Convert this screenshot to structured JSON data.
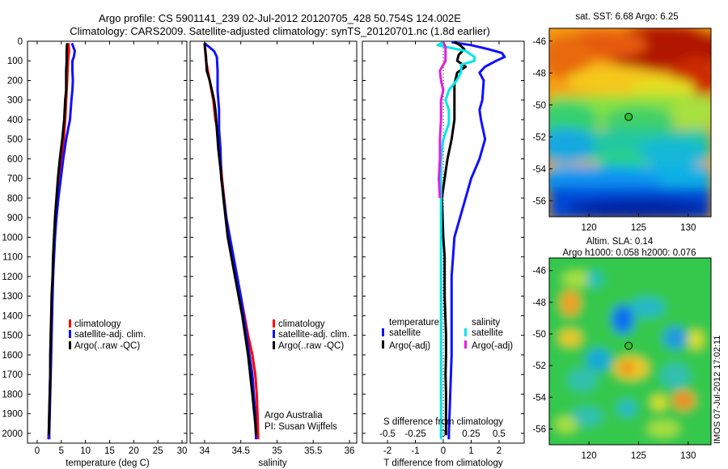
{
  "title": {
    "line1": "Argo profile: CS 5901141_239 02-Jul-2012 20120705_428 50.754S 124.002E",
    "line2": "Climatology: CARS2009. Satellite-adjusted climatology: synTS_20120701.nc (1.8d earlier)"
  },
  "colors": {
    "red": "#ff0000",
    "blue": "#1010ff",
    "black": "#000000",
    "cyan": "#00e8e8",
    "magenta": "#e020e0"
  },
  "chart_data": [
    {
      "type": "line",
      "xlabel": "temperature (deg C)",
      "ylabel": "",
      "xlim": [
        -2,
        31
      ],
      "ylim": [
        2050,
        0
      ],
      "xticks": [
        "0",
        "5",
        "10",
        "15",
        "20",
        "25",
        "30"
      ],
      "yticks": [
        "0",
        "100",
        "200",
        "300",
        "400",
        "500",
        "600",
        "700",
        "800",
        "900",
        "1000",
        "1100",
        "1200",
        "1300",
        "1400",
        "1500",
        "1600",
        "1700",
        "1800",
        "1900",
        "2000"
      ],
      "legend": [
        "climatology",
        "satellite-adj. clim.",
        "Argo(..raw -QC)"
      ],
      "series": [
        {
          "name": "climatology",
          "color": "red",
          "points": [
            [
              6.5,
              10
            ],
            [
              6.6,
              50
            ],
            [
              6.4,
              100
            ],
            [
              6.3,
              150
            ],
            [
              6.2,
              200
            ],
            [
              6.1,
              250
            ],
            [
              6.0,
              300
            ],
            [
              5.8,
              400
            ],
            [
              5.5,
              500
            ],
            [
              5.0,
              600
            ],
            [
              4.5,
              700
            ],
            [
              4.1,
              800
            ],
            [
              3.8,
              900
            ],
            [
              3.6,
              1000
            ],
            [
              3.4,
              1100
            ],
            [
              3.3,
              1200
            ],
            [
              3.1,
              1300
            ],
            [
              3.0,
              1400
            ],
            [
              2.9,
              1500
            ],
            [
              2.8,
              1600
            ],
            [
              2.7,
              1700
            ],
            [
              2.6,
              1800
            ],
            [
              2.5,
              1900
            ],
            [
              2.4,
              2000
            ],
            [
              2.3,
              2030
            ]
          ]
        },
        {
          "name": "satellite-adj. clim.",
          "color": "blue",
          "points": [
            [
              7.2,
              10
            ],
            [
              7.8,
              50
            ],
            [
              7.6,
              80
            ],
            [
              7.3,
              100
            ],
            [
              7.3,
              150
            ],
            [
              7.4,
              200
            ],
            [
              7.3,
              250
            ],
            [
              7.1,
              300
            ],
            [
              6.8,
              400
            ],
            [
              6.4,
              450
            ],
            [
              6.0,
              500
            ],
            [
              5.4,
              600
            ],
            [
              4.9,
              700
            ],
            [
              4.4,
              800
            ],
            [
              4.0,
              900
            ],
            [
              3.7,
              1000
            ],
            [
              3.5,
              1100
            ],
            [
              3.3,
              1200
            ],
            [
              3.2,
              1300
            ],
            [
              3.1,
              1400
            ],
            [
              3.0,
              1500
            ],
            [
              2.9,
              1600
            ],
            [
              2.8,
              1700
            ],
            [
              2.7,
              1800
            ],
            [
              2.6,
              1900
            ],
            [
              2.5,
              2000
            ],
            [
              2.5,
              2030
            ]
          ]
        },
        {
          "name": "Argo(..raw -QC)",
          "color": "black",
          "points": [
            [
              6.2,
              10
            ],
            [
              6.1,
              50
            ],
            [
              6.1,
              100
            ],
            [
              6.0,
              150
            ],
            [
              6.0,
              200
            ],
            [
              6.0,
              250
            ],
            [
              5.8,
              300
            ],
            [
              5.6,
              400
            ],
            [
              5.2,
              500
            ],
            [
              4.7,
              600
            ],
            [
              4.3,
              700
            ],
            [
              4.0,
              800
            ],
            [
              3.7,
              900
            ],
            [
              3.5,
              1000
            ],
            [
              3.3,
              1100
            ],
            [
              3.2,
              1200
            ],
            [
              3.0,
              1300
            ],
            [
              2.9,
              1400
            ],
            [
              2.8,
              1500
            ],
            [
              2.7,
              1600
            ],
            [
              2.7,
              1700
            ],
            [
              2.6,
              1800
            ],
            [
              2.5,
              1900
            ],
            [
              2.4,
              2000
            ],
            [
              2.4,
              2010
            ]
          ]
        }
      ]
    },
    {
      "type": "line",
      "xlabel": "salinity",
      "ylabel": "",
      "xlim": [
        33.8,
        36.1
      ],
      "ylim": [
        2050,
        0
      ],
      "xticks": [
        "34",
        "34.5",
        "35",
        "35.5",
        "36"
      ],
      "legend": [
        "climatology",
        "satellite-adj. clim.",
        "Argo(..raw -QC)"
      ],
      "annotation": [
        "Argo Australia",
        "PI: Susan Wijffels"
      ],
      "series": [
        {
          "name": "climatology",
          "color": "red",
          "points": [
            [
              34.0,
              10
            ],
            [
              34.02,
              100
            ],
            [
              34.07,
              200
            ],
            [
              34.12,
              300
            ],
            [
              34.15,
              400
            ],
            [
              34.18,
              450
            ],
            [
              34.19,
              500
            ],
            [
              34.21,
              550
            ],
            [
              34.24,
              700
            ],
            [
              34.3,
              900
            ],
            [
              34.38,
              1100
            ],
            [
              34.5,
              1300
            ],
            [
              34.6,
              1500
            ],
            [
              34.66,
              1600
            ],
            [
              34.7,
              1700
            ],
            [
              34.72,
              1800
            ],
            [
              34.73,
              1900
            ],
            [
              34.74,
              2030
            ]
          ]
        },
        {
          "name": "satellite-adj. clim.",
          "color": "blue",
          "points": [
            [
              34.0,
              10
            ],
            [
              34.13,
              50
            ],
            [
              34.17,
              80
            ],
            [
              34.18,
              150
            ],
            [
              34.18,
              250
            ],
            [
              34.2,
              350
            ],
            [
              34.2,
              450
            ],
            [
              34.22,
              550
            ],
            [
              34.23,
              700
            ],
            [
              34.3,
              900
            ],
            [
              34.4,
              1100
            ],
            [
              34.5,
              1300
            ],
            [
              34.58,
              1500
            ],
            [
              34.62,
              1600
            ],
            [
              34.66,
              1700
            ],
            [
              34.68,
              1800
            ],
            [
              34.7,
              1900
            ],
            [
              34.71,
              2000
            ],
            [
              34.71,
              2030
            ]
          ]
        },
        {
          "name": "Argo(..raw -QC)",
          "color": "black",
          "points": [
            [
              34.0,
              10
            ],
            [
              34.02,
              80
            ],
            [
              34.03,
              150
            ],
            [
              34.07,
              200
            ],
            [
              34.1,
              250
            ],
            [
              34.13,
              300
            ],
            [
              34.15,
              350
            ],
            [
              34.17,
              450
            ],
            [
              34.19,
              550
            ],
            [
              34.22,
              650
            ],
            [
              34.26,
              800
            ],
            [
              34.32,
              1000
            ],
            [
              34.42,
              1200
            ],
            [
              34.52,
              1400
            ],
            [
              34.6,
              1600
            ],
            [
              34.66,
              1800
            ],
            [
              34.7,
              1950
            ],
            [
              34.71,
              2010
            ]
          ]
        }
      ]
    },
    {
      "type": "line",
      "xlabel": "T difference from climatology",
      "x2label": "S difference from climatology",
      "xlim": [
        -2.9,
        2.9
      ],
      "x2lim": [
        -0.725,
        0.725
      ],
      "ylim": [
        2050,
        0
      ],
      "xticks": [
        "-2",
        "-1",
        "0",
        "1",
        "2"
      ],
      "x2ticks": [
        "-0.5",
        "-0.25",
        "0",
        "0.25",
        "0.5"
      ],
      "legend_groups": [
        {
          "heading": "temperature",
          "items": [
            "satellite",
            "Argo(-adj)"
          ]
        },
        {
          "heading": "salinity",
          "items": [
            "satellite",
            "Argo(-adj)"
          ]
        }
      ],
      "series": [
        {
          "name": "temperature satellite",
          "color": "blue",
          "axis": "T",
          "points": [
            [
              0.3,
              5
            ],
            [
              1.0,
              20
            ],
            [
              1.6,
              40
            ],
            [
              2.1,
              60
            ],
            [
              2.2,
              80
            ],
            [
              1.9,
              100
            ],
            [
              1.5,
              130
            ],
            [
              1.3,
              160
            ],
            [
              1.45,
              200
            ],
            [
              1.4,
              300
            ],
            [
              1.3,
              350
            ],
            [
              1.35,
              400
            ],
            [
              1.5,
              500
            ],
            [
              1.3,
              600
            ],
            [
              1.0,
              700
            ],
            [
              0.8,
              800
            ],
            [
              0.6,
              900
            ],
            [
              0.4,
              1000
            ],
            [
              0.35,
              1100
            ],
            [
              0.3,
              1200
            ],
            [
              0.3,
              1400
            ],
            [
              0.3,
              1600
            ],
            [
              0.25,
              1800
            ],
            [
              0.2,
              2000
            ],
            [
              0.2,
              2030
            ]
          ]
        },
        {
          "name": "temperature Argo(-adj)",
          "color": "black",
          "axis": "T",
          "points": [
            [
              0.4,
              5
            ],
            [
              0.6,
              20
            ],
            [
              0.75,
              40
            ],
            [
              0.55,
              70
            ],
            [
              0.5,
              100
            ],
            [
              0.8,
              130
            ],
            [
              0.5,
              160
            ],
            [
              0.4,
              220
            ],
            [
              0.4,
              300
            ],
            [
              0.4,
              400
            ],
            [
              0.3,
              500
            ],
            [
              0.15,
              600
            ],
            [
              0.05,
              700
            ],
            [
              -0.05,
              800
            ],
            [
              0,
              1000
            ],
            [
              0.05,
              1100
            ],
            [
              0.05,
              1300
            ],
            [
              0.1,
              1500
            ],
            [
              0.1,
              1600
            ],
            [
              0.08,
              1700
            ],
            [
              0.1,
              1800
            ],
            [
              0.1,
              1900
            ],
            [
              0.1,
              2000
            ],
            [
              0.1,
              2010
            ]
          ]
        },
        {
          "name": "salinity satellite",
          "color": "cyan",
          "axis": "S",
          "points": [
            [
              0.0,
              5
            ],
            [
              -0.05,
              20
            ],
            [
              0.2,
              50
            ],
            [
              0.28,
              80
            ],
            [
              0.28,
              100
            ],
            [
              0.16,
              120
            ],
            [
              0.16,
              160
            ],
            [
              0.12,
              200
            ],
            [
              0.05,
              250
            ],
            [
              0.02,
              300
            ],
            [
              0.05,
              350
            ],
            [
              0.05,
              420
            ],
            [
              0.0,
              500
            ],
            [
              -0.02,
              600
            ],
            [
              -0.02,
              800
            ],
            [
              -0.02,
              1000
            ],
            [
              -0.02,
              1200
            ],
            [
              -0.02,
              1400
            ],
            [
              -0.02,
              1600
            ],
            [
              -0.02,
              1800
            ],
            [
              -0.02,
              2000
            ],
            [
              -0.02,
              2030
            ]
          ]
        },
        {
          "name": "salinity Argo(-adj)",
          "color": "magenta",
          "axis": "S",
          "points": [
            [
              0.0,
              5
            ],
            [
              0.02,
              30
            ],
            [
              0.02,
              100
            ],
            [
              -0.03,
              150
            ],
            [
              -0.02,
              200
            ],
            [
              0.0,
              250
            ],
            [
              -0.02,
              300
            ],
            [
              -0.02,
              400
            ],
            [
              -0.03,
              500
            ],
            [
              -0.03,
              600
            ],
            [
              -0.04,
              700
            ],
            [
              -0.03,
              800
            ]
          ]
        }
      ]
    }
  ],
  "maps": {
    "top": {
      "title": "sat. SST: 6.68 Argo: 6.25",
      "xticks": [
        "120",
        "125",
        "130"
      ],
      "yticks": [
        "-46",
        "-48",
        "-50",
        "-52",
        "-54",
        "-56"
      ],
      "marker": {
        "lon": 124.0,
        "lat": -50.75
      }
    },
    "bottom": {
      "title1": "Altim. SLA: 0.14",
      "title2": "Argo h1000: 0.058 h2000: 0.076",
      "xticks": [
        "120",
        "125",
        "130"
      ],
      "yticks": [
        "-46",
        "-48",
        "-50",
        "-52",
        "-54",
        "-56"
      ],
      "marker": {
        "lon": 124.0,
        "lat": -50.75
      }
    }
  },
  "footer_stamp": "IMOS 07-Jul-2012 17:02:11"
}
